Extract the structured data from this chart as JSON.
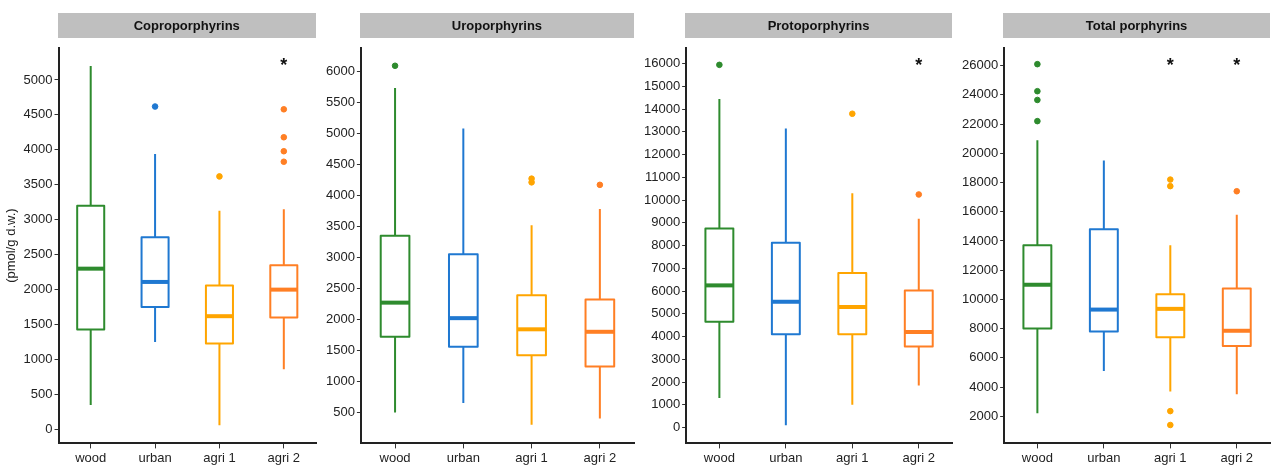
{
  "chart_data": [
    {
      "type": "box",
      "title": "Coproporphyrins",
      "ylabel": "(pmol/g d.w.)",
      "categories": [
        "wood",
        "urban",
        "agri 1",
        "agri 2"
      ],
      "colors": [
        "#2e8b2e",
        "#1f78d1",
        "#ffa500",
        "#ff7f24"
      ],
      "ylim": [
        -200,
        5460
      ],
      "yticks": [
        0,
        500,
        1000,
        1500,
        2000,
        2500,
        3000,
        3500,
        4000,
        4500,
        5000
      ],
      "grid": false,
      "legend": false,
      "boxes": [
        {
          "low": 350,
          "q1": 1430,
          "median": 2300,
          "q3": 3200,
          "high": 5200
        },
        {
          "low": 1250,
          "q1": 1750,
          "median": 2110,
          "q3": 2750,
          "high": 3940,
          "outliers": [
            4620
          ]
        },
        {
          "low": 60,
          "q1": 1230,
          "median": 1620,
          "q3": 2060,
          "high": 3130,
          "outliers": [
            3620
          ]
        },
        {
          "low": 860,
          "q1": 1600,
          "median": 2000,
          "q3": 2350,
          "high": 3150,
          "outliers": [
            4580,
            4180,
            3980,
            3830
          ]
        }
      ],
      "annotations": [
        "*"
      ]
    },
    {
      "type": "box",
      "title": "Uroporphyrins",
      "categories": [
        "wood",
        "urban",
        "agri 1",
        "agri 2"
      ],
      "colors": [
        "#2e8b2e",
        "#1f78d1",
        "#ffa500",
        "#ff7f24"
      ],
      "ylim": [
        0,
        6380
      ],
      "yticks": [
        500,
        1000,
        1500,
        2000,
        2500,
        3000,
        3500,
        4000,
        4500,
        5000,
        5500,
        6000
      ],
      "grid": false,
      "legend": false,
      "boxes": [
        {
          "low": 500,
          "q1": 1720,
          "median": 2270,
          "q3": 3350,
          "high": 5730,
          "outliers": [
            6090
          ]
        },
        {
          "low": 650,
          "q1": 1560,
          "median": 2020,
          "q3": 3050,
          "high": 5080
        },
        {
          "low": 300,
          "q1": 1420,
          "median": 1840,
          "q3": 2390,
          "high": 3520,
          "outliers": [
            4270,
            4210
          ]
        },
        {
          "low": 400,
          "q1": 1240,
          "median": 1800,
          "q3": 2320,
          "high": 3780,
          "outliers": [
            4170
          ]
        }
      ]
    },
    {
      "type": "box",
      "title": "Protoporphyrins",
      "categories": [
        "wood",
        "urban",
        "agri 1",
        "agri 2"
      ],
      "colors": [
        "#2e8b2e",
        "#1f78d1",
        "#ffa500",
        "#ff7f24"
      ],
      "ylim": [
        -700,
        16700
      ],
      "yticks": [
        0,
        1000,
        2000,
        3000,
        4000,
        5000,
        6000,
        7000,
        8000,
        9000,
        10000,
        11000,
        12000,
        13000,
        14000,
        15000,
        16000
      ],
      "grid": false,
      "legend": false,
      "boxes": [
        {
          "low": 1300,
          "q1": 4650,
          "median": 6250,
          "q3": 8750,
          "high": 14450,
          "outliers": [
            15950
          ]
        },
        {
          "low": 100,
          "q1": 4100,
          "median": 5530,
          "q3": 8130,
          "high": 13150
        },
        {
          "low": 1000,
          "q1": 4100,
          "median": 5300,
          "q3": 6800,
          "high": 10300,
          "outliers": [
            13800
          ]
        },
        {
          "low": 1850,
          "q1": 3560,
          "median": 4200,
          "q3": 6020,
          "high": 9180,
          "outliers": [
            10250
          ]
        }
      ],
      "annotations": [
        "*"
      ]
    },
    {
      "type": "box",
      "title": "Total porphyrins",
      "categories": [
        "wood",
        "urban",
        "agri 1",
        "agri 2"
      ],
      "colors": [
        "#2e8b2e",
        "#1f78d1",
        "#ffa500",
        "#ff7f24"
      ],
      "ylim": [
        140,
        27220
      ],
      "yticks": [
        2000,
        4000,
        6000,
        8000,
        10000,
        12000,
        14000,
        16000,
        18000,
        20000,
        22000,
        24000,
        26000
      ],
      "grid": false,
      "legend": false,
      "boxes": [
        {
          "low": 2200,
          "q1": 8000,
          "median": 11000,
          "q3": 13700,
          "high": 20900,
          "outliers": [
            26100,
            24250,
            23650,
            22200
          ]
        },
        {
          "low": 5100,
          "q1": 7800,
          "median": 9300,
          "q3": 14800,
          "high": 19500
        },
        {
          "low": 3700,
          "q1": 7400,
          "median": 9350,
          "q3": 10350,
          "high": 13700,
          "outliers": [
            18200,
            17750,
            2350,
            1400
          ]
        },
        {
          "low": 3500,
          "q1": 6800,
          "median": 7850,
          "q3": 10750,
          "high": 15800,
          "outliers": [
            17400
          ]
        }
      ],
      "annotations": [
        "*",
        "*"
      ]
    }
  ]
}
